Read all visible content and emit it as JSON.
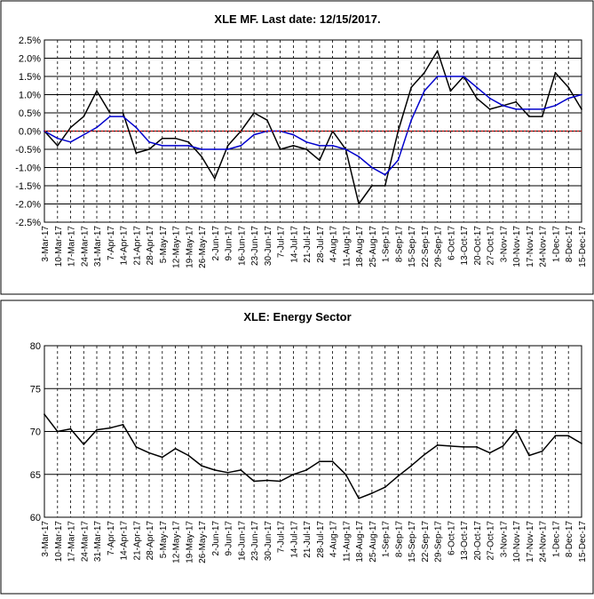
{
  "charts": {
    "top": {
      "title": "XLE MF. Last date: 12/15/2017.",
      "ytick_labels": [
        "2.5%",
        "2.0%",
        "1.5%",
        "1.0%",
        "0.5%",
        "0.0%",
        "-0.5%",
        "-1.0%",
        "-1.5%",
        "-2.0%",
        "-2.5%"
      ]
    },
    "bottom": {
      "title": "XLE: Energy Sector",
      "ytick_labels": [
        "80",
        "75",
        "70",
        "65",
        "60"
      ]
    },
    "xtick_labels": [
      "3-Mar-17",
      "10-Mar-17",
      "17-Mar-17",
      "24-Mar-17",
      "31-Mar-17",
      "7-Apr-17",
      "14-Apr-17",
      "21-Apr-17",
      "28-Apr-17",
      "5-May-17",
      "12-May-17",
      "19-May-17",
      "26-May-17",
      "2-Jun-17",
      "9-Jun-17",
      "16-Jun-17",
      "23-Jun-17",
      "30-Jun-17",
      "7-Jul-17",
      "14-Jul-17",
      "21-Jul-17",
      "28-Jul-17",
      "4-Aug-17",
      "11-Aug-17",
      "18-Aug-17",
      "25-Aug-17",
      "1-Sep-17",
      "8-Sep-17",
      "15-Sep-17",
      "22-Sep-17",
      "29-Sep-17",
      "6-Oct-17",
      "13-Oct-17",
      "20-Oct-17",
      "27-Oct-17",
      "3-Nov-17",
      "10-Nov-17",
      "17-Nov-17",
      "24-Nov-17",
      "1-Dec-17",
      "8-Dec-17",
      "15-Dec-17"
    ]
  },
  "chart_data": [
    {
      "type": "line",
      "title": "XLE MF. Last date: 12/15/2017.",
      "y_unit": "%",
      "ylim": [
        -2.5,
        2.5
      ],
      "grid": true,
      "x_range": [
        "3-Mar-17",
        "15-Dec-17"
      ],
      "categories": [
        "3-Mar-17",
        "10-Mar-17",
        "17-Mar-17",
        "24-Mar-17",
        "31-Mar-17",
        "7-Apr-17",
        "14-Apr-17",
        "21-Apr-17",
        "28-Apr-17",
        "5-May-17",
        "12-May-17",
        "19-May-17",
        "26-May-17",
        "2-Jun-17",
        "9-Jun-17",
        "16-Jun-17",
        "23-Jun-17",
        "30-Jun-17",
        "7-Jul-17",
        "14-Jul-17",
        "21-Jul-17",
        "28-Jul-17",
        "4-Aug-17",
        "11-Aug-17",
        "18-Aug-17",
        "25-Aug-17",
        "1-Sep-17",
        "8-Sep-17",
        "15-Sep-17",
        "22-Sep-17",
        "29-Sep-17",
        "6-Oct-17",
        "13-Oct-17",
        "20-Oct-17",
        "27-Oct-17",
        "3-Nov-17",
        "10-Nov-17",
        "17-Nov-17",
        "24-Nov-17",
        "1-Dec-17",
        "8-Dec-17",
        "15-Dec-17"
      ],
      "series": [
        {
          "color": "#000000",
          "values": [
            0.0,
            -0.4,
            0.1,
            0.4,
            1.1,
            0.5,
            0.5,
            -0.6,
            -0.5,
            -0.2,
            -0.2,
            -0.3,
            -0.7,
            -1.3,
            -0.4,
            0.0,
            0.5,
            0.3,
            -0.5,
            -0.4,
            -0.5,
            -0.8,
            0.0,
            -0.5,
            -2.0,
            -1.5,
            -1.5,
            0.0,
            1.2,
            1.6,
            2.2,
            1.1,
            1.5,
            0.9,
            0.6,
            0.7,
            0.8,
            0.4,
            0.4,
            1.6,
            1.2,
            0.6
          ]
        },
        {
          "color": "#0000cc",
          "values": [
            0.0,
            -0.2,
            -0.3,
            -0.1,
            0.1,
            0.4,
            0.4,
            0.1,
            -0.3,
            -0.4,
            -0.4,
            -0.4,
            -0.5,
            -0.5,
            -0.5,
            -0.4,
            -0.1,
            0.0,
            0.0,
            -0.1,
            -0.3,
            -0.4,
            -0.4,
            -0.5,
            -0.7,
            -1.0,
            -1.2,
            -0.8,
            0.3,
            1.1,
            1.5,
            1.5,
            1.5,
            1.2,
            0.9,
            0.7,
            0.6,
            0.6,
            0.6,
            0.7,
            0.9,
            1.0
          ]
        },
        {
          "color": "#cc0000",
          "values": [
            0,
            0,
            0,
            0,
            0,
            0,
            0,
            0,
            0,
            0,
            0,
            0,
            0,
            0,
            0,
            0,
            0,
            0,
            0,
            0,
            0,
            0,
            0,
            0,
            0,
            0,
            0,
            0,
            0,
            0,
            0,
            0,
            0,
            0,
            0,
            0,
            0,
            0,
            0,
            0,
            0,
            0
          ]
        }
      ]
    },
    {
      "type": "line",
      "title": "XLE: Energy Sector",
      "ylim": [
        60,
        80
      ],
      "grid": true,
      "x_range": [
        "3-Mar-17",
        "15-Dec-17"
      ],
      "categories": [
        "3-Mar-17",
        "10-Mar-17",
        "17-Mar-17",
        "24-Mar-17",
        "31-Mar-17",
        "7-Apr-17",
        "14-Apr-17",
        "21-Apr-17",
        "28-Apr-17",
        "5-May-17",
        "12-May-17",
        "19-May-17",
        "26-May-17",
        "2-Jun-17",
        "9-Jun-17",
        "16-Jun-17",
        "23-Jun-17",
        "30-Jun-17",
        "7-Jul-17",
        "14-Jul-17",
        "21-Jul-17",
        "28-Jul-17",
        "4-Aug-17",
        "11-Aug-17",
        "18-Aug-17",
        "25-Aug-17",
        "1-Sep-17",
        "8-Sep-17",
        "15-Sep-17",
        "22-Sep-17",
        "29-Sep-17",
        "6-Oct-17",
        "13-Oct-17",
        "20-Oct-17",
        "27-Oct-17",
        "3-Nov-17",
        "10-Nov-17",
        "17-Nov-17",
        "24-Nov-17",
        "1-Dec-17",
        "8-Dec-17",
        "15-Dec-17"
      ],
      "series": [
        {
          "color": "#000000",
          "values": [
            72.0,
            70.0,
            70.3,
            68.5,
            70.2,
            70.4,
            70.8,
            68.2,
            67.5,
            67.0,
            68.0,
            67.2,
            66.0,
            65.5,
            65.2,
            65.5,
            64.2,
            64.3,
            64.2,
            65.0,
            65.5,
            66.5,
            66.5,
            65.0,
            62.2,
            62.8,
            63.5,
            64.8,
            66.0,
            67.3,
            68.4,
            68.3,
            68.2,
            68.2,
            67.5,
            68.3,
            70.2,
            67.2,
            67.7,
            69.5,
            69.5,
            68.6
          ]
        }
      ]
    }
  ]
}
